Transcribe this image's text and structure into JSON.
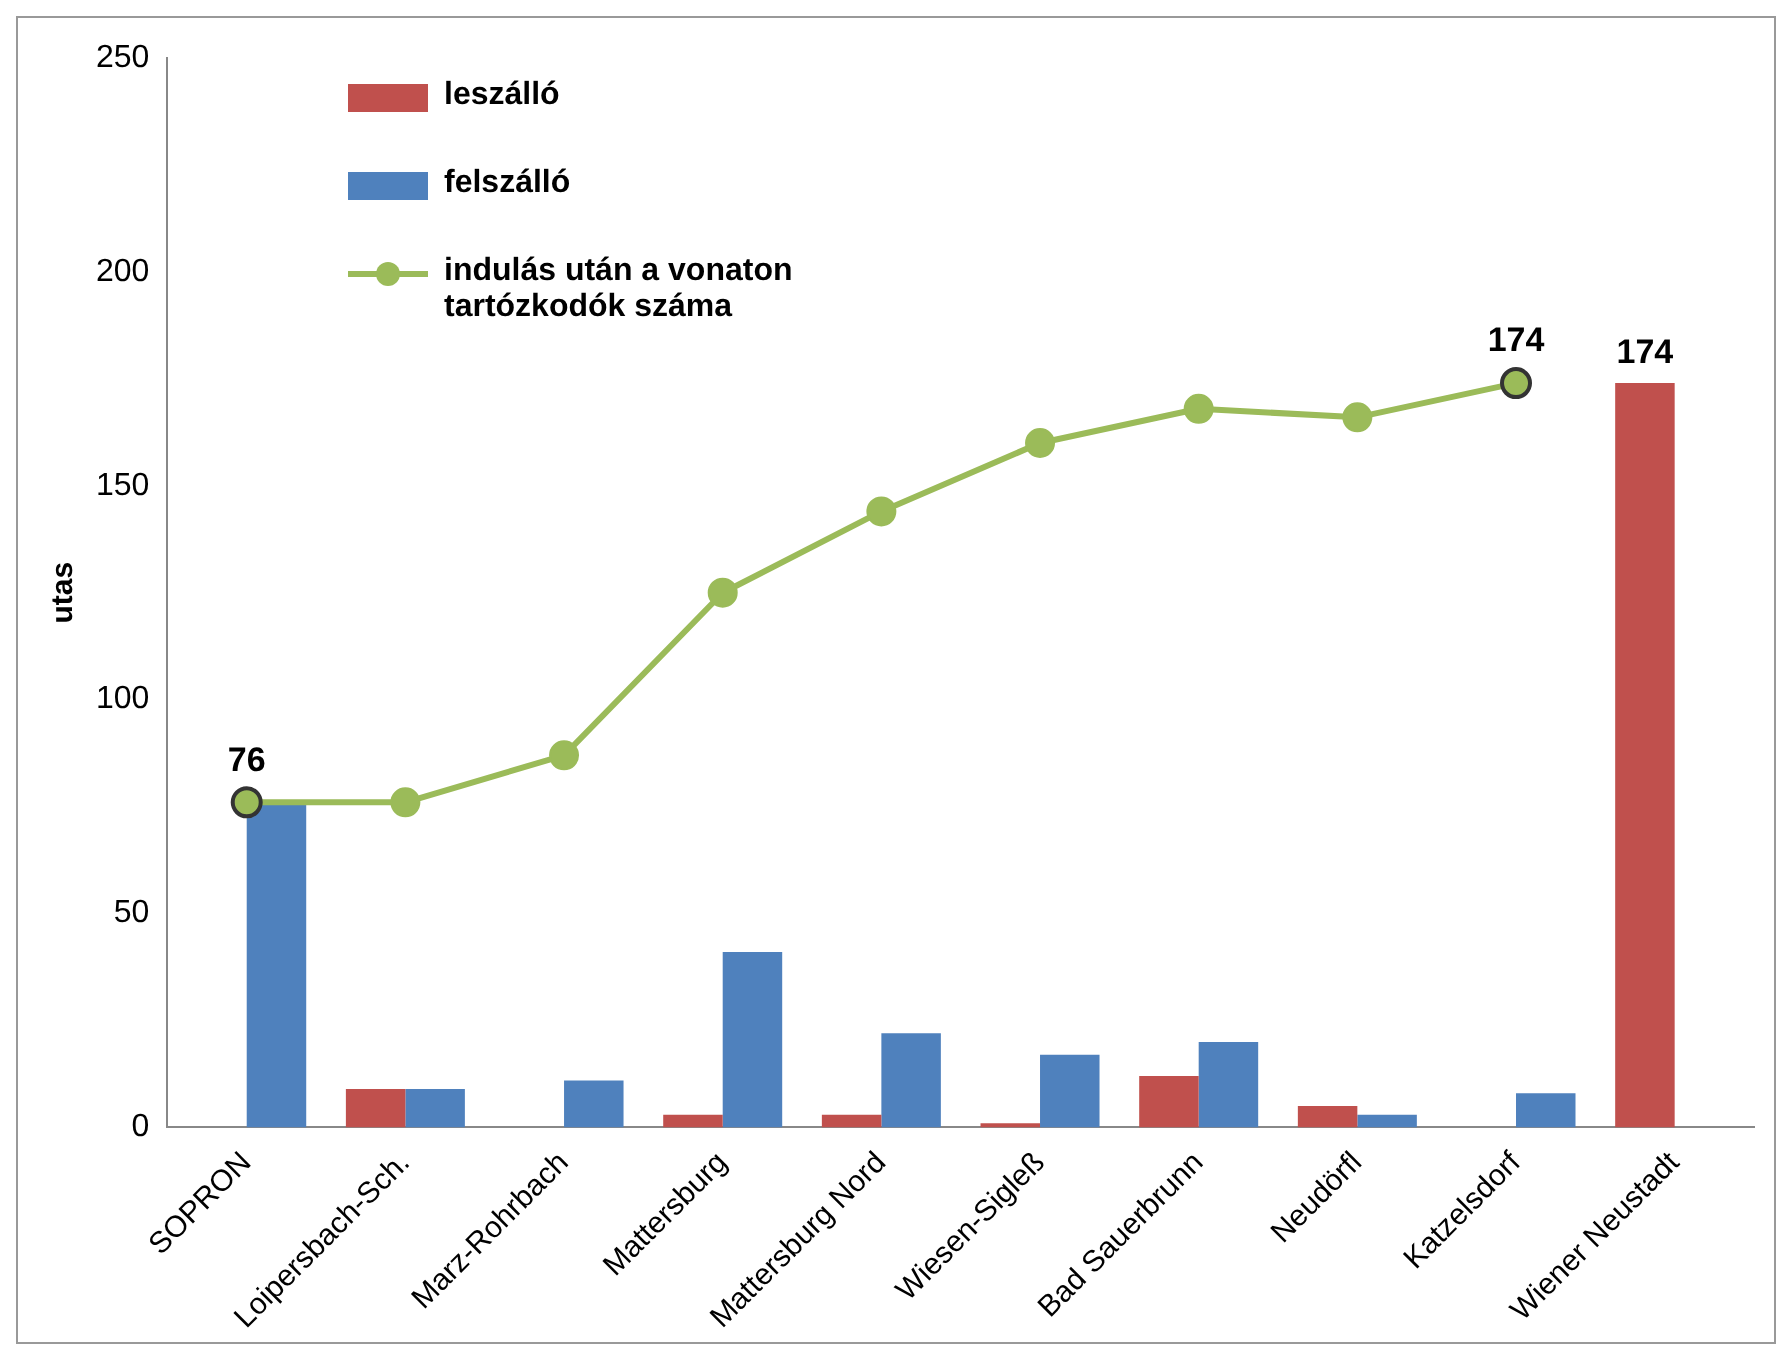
{
  "chart_data": {
    "type": "bar",
    "ylabel": "utas",
    "categories": [
      "SOPRON",
      "Loipersbach-Sch.",
      "Marz-Rohrbach",
      "Mattersburg",
      "Mattersburg Nord",
      "Wiesen-Sigleß",
      "Bad Sauerbrunn",
      "Neudörfl",
      "Katzelsdorf",
      "Wiener Neustadt"
    ],
    "series": [
      {
        "name": "leszálló",
        "color": "#c0504d",
        "values": [
          0,
          9,
          0,
          3,
          3,
          1,
          12,
          5,
          0,
          174
        ],
        "value_labels": [
          null,
          null,
          null,
          null,
          null,
          null,
          null,
          null,
          null,
          "174"
        ]
      },
      {
        "name": "felszálló",
        "color": "#4f81bd",
        "values": [
          76,
          9,
          11,
          41,
          22,
          17,
          20,
          3,
          8,
          0
        ]
      },
      {
        "name": "indulás után a vonaton tartózkodók száma",
        "type": "line",
        "color": "#9bbb59",
        "values": [
          76,
          76,
          87,
          125,
          144,
          160,
          168,
          166,
          174,
          null
        ],
        "value_labels": [
          "76",
          null,
          null,
          null,
          null,
          null,
          null,
          null,
          "174",
          null
        ]
      }
    ],
    "ylim": [
      0,
      250
    ],
    "yticks": [
      0,
      50,
      100,
      150,
      200,
      250
    ],
    "grid": false,
    "legend": "top left",
    "marker": "circle",
    "line_style": "solid"
  }
}
